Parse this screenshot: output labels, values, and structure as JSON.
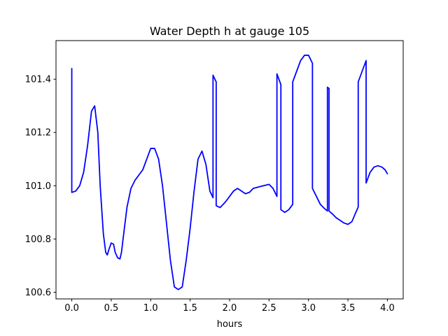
{
  "chart_data": {
    "type": "line",
    "title": "Water Depth h at gauge 105",
    "xlabel": "hours",
    "ylabel": "",
    "xlim": [
      -0.2,
      4.2
    ],
    "ylim": [
      100.575,
      101.545
    ],
    "x_ticks": [
      0.0,
      0.5,
      1.0,
      1.5,
      2.0,
      2.5,
      3.0,
      3.5,
      4.0
    ],
    "x_tick_labels": [
      "0.0",
      "0.5",
      "1.0",
      "1.5",
      "2.0",
      "2.5",
      "3.0",
      "3.5",
      "4.0"
    ],
    "y_ticks": [
      100.6,
      100.8,
      101.0,
      101.2,
      101.4
    ],
    "y_tick_labels": [
      "100.6",
      "100.8",
      "101.0",
      "101.2",
      "101.4"
    ],
    "grid": false,
    "legend": "none",
    "series": [
      {
        "color": "#0000ff",
        "x": [
          0.0,
          0.0,
          0.05,
          0.1,
          0.15,
          0.2,
          0.25,
          0.29,
          0.33,
          0.36,
          0.4,
          0.43,
          0.45,
          0.47,
          0.5,
          0.53,
          0.55,
          0.58,
          0.61,
          0.63,
          0.65,
          0.7,
          0.75,
          0.8,
          0.85,
          0.9,
          0.95,
          1.0,
          1.05,
          1.1,
          1.15,
          1.2,
          1.25,
          1.3,
          1.35,
          1.4,
          1.45,
          1.5,
          1.55,
          1.6,
          1.65,
          1.7,
          1.75,
          1.79,
          1.79,
          1.83,
          1.83,
          1.88,
          1.95,
          2.05,
          2.1,
          2.15,
          2.2,
          2.25,
          2.3,
          2.4,
          2.5,
          2.55,
          2.6,
          2.6,
          2.65,
          2.65,
          2.7,
          2.75,
          2.8,
          2.8,
          2.85,
          2.9,
          2.95,
          3.0,
          3.05,
          3.05,
          3.1,
          3.15,
          3.2,
          3.24,
          3.24,
          3.26,
          3.26,
          3.3,
          3.35,
          3.4,
          3.45,
          3.5,
          3.55,
          3.6,
          3.63,
          3.63,
          3.68,
          3.73,
          3.73,
          3.78,
          3.83,
          3.88,
          3.93,
          3.97,
          4.0
        ],
        "values": [
          101.44,
          100.975,
          100.98,
          101.0,
          101.05,
          101.15,
          101.28,
          101.3,
          101.2,
          101.0,
          100.82,
          100.75,
          100.74,
          100.76,
          100.785,
          100.78,
          100.75,
          100.73,
          100.725,
          100.75,
          100.8,
          100.92,
          100.99,
          101.02,
          101.04,
          101.06,
          101.1,
          101.14,
          101.14,
          101.1,
          101.0,
          100.86,
          100.72,
          100.62,
          100.61,
          100.62,
          100.72,
          100.84,
          100.98,
          101.1,
          101.13,
          101.08,
          100.98,
          100.955,
          101.415,
          101.39,
          100.925,
          100.918,
          100.94,
          100.98,
          100.99,
          100.98,
          100.97,
          100.975,
          100.99,
          100.998,
          101.005,
          100.99,
          100.96,
          101.42,
          101.38,
          100.91,
          100.9,
          100.91,
          100.93,
          101.39,
          101.43,
          101.47,
          101.49,
          101.49,
          101.46,
          100.99,
          100.96,
          100.93,
          100.915,
          100.905,
          101.37,
          101.365,
          100.905,
          100.895,
          100.88,
          100.87,
          100.86,
          100.855,
          100.865,
          100.9,
          100.92,
          101.39,
          101.43,
          101.47,
          101.01,
          101.05,
          101.07,
          101.075,
          101.07,
          101.06,
          101.045
        ]
      }
    ]
  }
}
